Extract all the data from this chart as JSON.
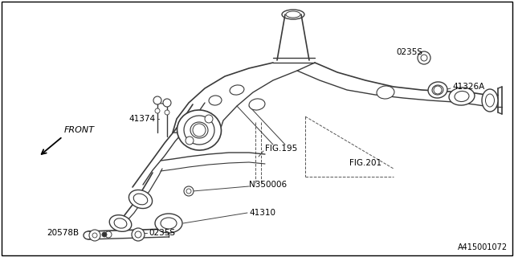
{
  "bg_color": "#ffffff",
  "border_color": "#000000",
  "line_color": "#3a3a3a",
  "text_color": "#000000",
  "fig_width": 6.4,
  "fig_height": 3.2,
  "dpi": 100,
  "labels": {
    "front": "FRONT",
    "part_0235S_top": "0235S",
    "part_41326A": "41326A",
    "part_41374": "41374",
    "part_FIG195": "FIG.195",
    "part_N350006": "N350006",
    "part_41310": "41310",
    "part_20578B": "20578B",
    "part_0235S_bot": "0235S",
    "part_FIG201": "FIG.201",
    "diagram_ref": "A415001072"
  },
  "font_size_labels": 7.5,
  "font_size_id": 7.0
}
